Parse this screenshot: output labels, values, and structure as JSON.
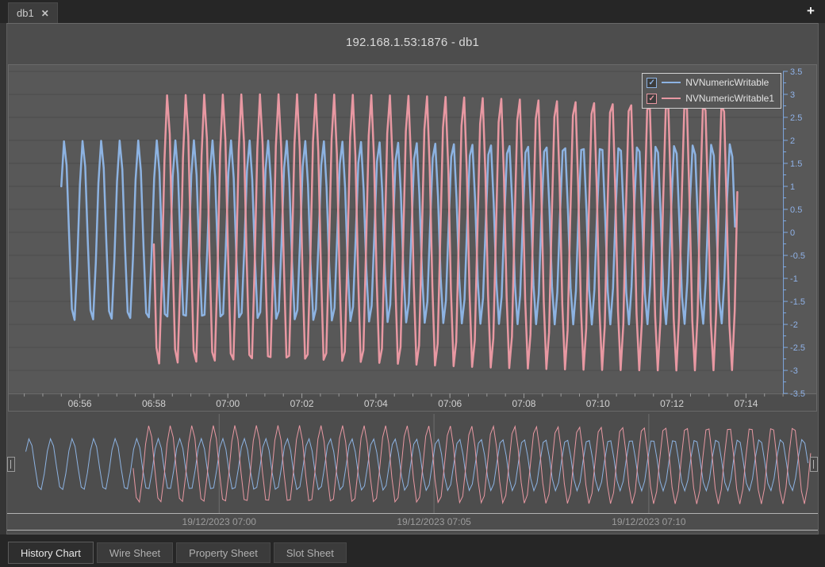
{
  "window": {
    "tab_label": "db1",
    "close_icon": "✕",
    "add_tab_icon": "+",
    "title": "192.168.1.53:1876 - db1"
  },
  "legend": {
    "items": [
      {
        "label": "NVNumericWritable",
        "color": "#8db3e2",
        "checked": true,
        "check_icon": "✓"
      },
      {
        "label": "NVNumericWritable1",
        "color": "#e898a2",
        "checked": true,
        "check_icon": "✓"
      }
    ]
  },
  "bottom_tabs": [
    {
      "label": "History Chart",
      "active": true
    },
    {
      "label": "Wire Sheet",
      "active": false
    },
    {
      "label": "Property Sheet",
      "active": false
    },
    {
      "label": "Slot Sheet",
      "active": false
    }
  ],
  "chart_data": {
    "type": "line",
    "title": "192.168.1.53:1876 - db1",
    "grid": {
      "horizontal": true,
      "vertical": false
    },
    "colors": {
      "plot_bg": "#585858",
      "gridline": "#4d4d4d",
      "label_strip_bg": "#4d4d4d",
      "y_axis": "#7fa8e0",
      "y_label": "#8fb2e8",
      "x_label": "#d2d2d2",
      "x_tick": "#9a9a9a",
      "plot_edge": "#6f6f6f",
      "overview_grid": "#6e6e6e"
    },
    "y_axis": {
      "side": "right",
      "min": -3.5,
      "max": 3.5,
      "major_step": 0.5,
      "minor_step": 0.25,
      "tick_labels": [
        "3.5",
        "3",
        "2.5",
        "2",
        "1.5",
        "1",
        "0.5",
        "0",
        "-0.5",
        "-1",
        "-1.5",
        "-2",
        "-2.5",
        "-3",
        "-3.5"
      ]
    },
    "x_axis": {
      "start": "06:54:24",
      "end": "07:15:00",
      "major_tick_sec": 120,
      "minor_tick_sec": 30,
      "first_major": "06:56:00",
      "tick_labels": [
        "06:56",
        "06:58",
        "07:00",
        "07:02",
        "07:04",
        "07:06",
        "07:08",
        "07:10",
        "07:12",
        "07:14"
      ]
    },
    "series": [
      {
        "name": "NVNumericWritable",
        "color": "#8db3e2",
        "waveform": "sine",
        "amplitude": 2,
        "offset": 0,
        "period_sec": 30,
        "phase_deg": 30,
        "start": "06:55:30",
        "end": "07:13:45",
        "sample_sec": 4.3,
        "stroke_width": 2.5
      },
      {
        "name": "NVNumericWritable1",
        "color": "#e898a2",
        "waveform": "sine",
        "amplitude": 3,
        "offset": 0,
        "period_sec": 30,
        "phase_deg": 185,
        "start": "06:58:00",
        "end": "07:13:50",
        "sample_sec": 4.3,
        "stroke_width": 2.5
      }
    ],
    "overview": {
      "start": "06:55:15",
      "end": "07:13:45",
      "tick_times": [
        "07:00:00",
        "07:05:00",
        "07:10:00"
      ],
      "tick_labels": [
        "19/12/2023 07:00",
        "19/12/2023 07:05",
        "19/12/2023 07:10"
      ],
      "stroke_width": 1
    }
  }
}
